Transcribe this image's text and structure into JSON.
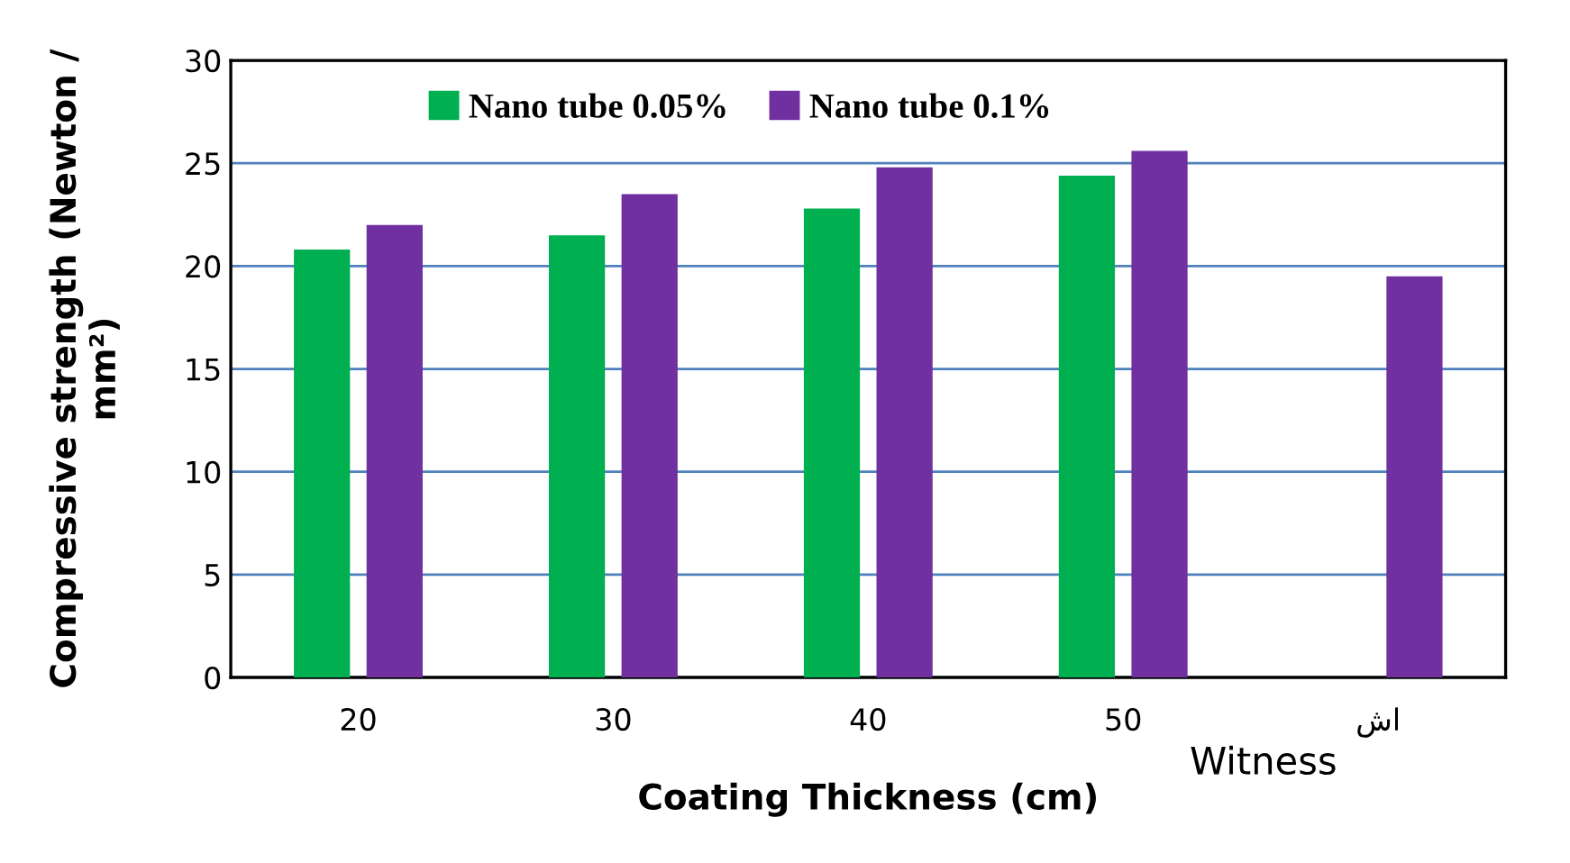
{
  "chart_data": {
    "type": "bar",
    "xlabel": "Coating Thickness (cm)",
    "ylabel": "Compressive strength (Newton / mm²)",
    "categories": [
      "20",
      "30",
      "40",
      "50",
      "شا"
    ],
    "series": [
      {
        "name": "Nano tube 0.05%",
        "color": "#00b050",
        "values": [
          20.8,
          21.5,
          22.8,
          24.4,
          null
        ]
      },
      {
        "name": "Nano tube 0.1%",
        "color": "#7030a0",
        "values": [
          22.0,
          23.5,
          24.8,
          25.6,
          19.5
        ]
      }
    ],
    "ylim": [
      0,
      30
    ],
    "yticks": [
      0,
      5,
      10,
      15,
      20,
      25,
      30
    ],
    "grid": "y",
    "legend": "top",
    "annotations": [
      "Witness"
    ]
  }
}
